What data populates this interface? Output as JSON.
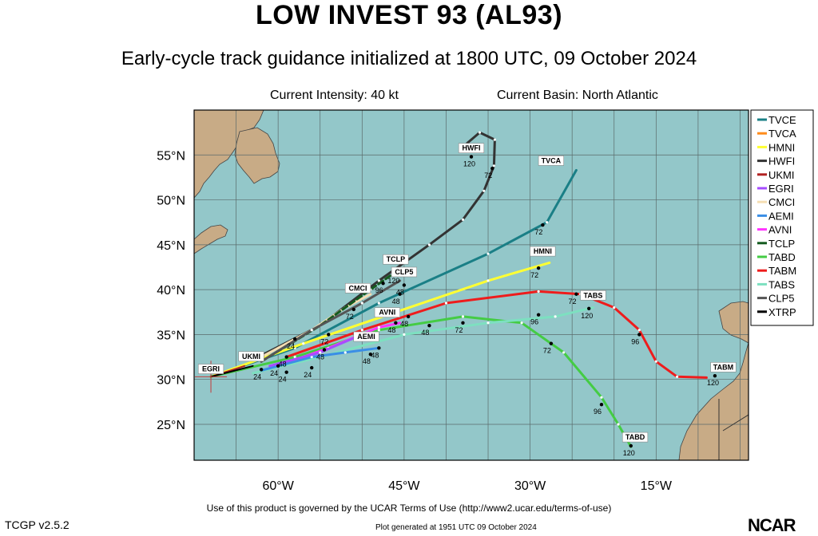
{
  "header": {
    "title": "LOW INVEST 93 (AL93)",
    "subtitle": "Early-cycle track guidance initialized at 1800 UTC, 09 October 2024",
    "intensity": "Current Intensity: 40 kt",
    "basin": "Current Basin: North Atlantic"
  },
  "footer": {
    "terms": "Use of this product is governed by the UCAR Terms of Use (http://www2.ucar.edu/terms-of-use)",
    "version": "TCGP v2.5.2",
    "generated": "Plot generated at 1951 UTC   09 October 2024",
    "logo": "NCAR"
  },
  "map": {
    "lon_range": [
      -70,
      -4
    ],
    "lat_range": [
      21,
      60
    ],
    "lon_ticks": [
      {
        "value": -60,
        "label": "60°W"
      },
      {
        "value": -45,
        "label": "45°W"
      },
      {
        "value": -30,
        "label": "30°W"
      },
      {
        "value": -15,
        "label": "15°W"
      }
    ],
    "lat_ticks": [
      {
        "value": 25,
        "label": "25°N"
      },
      {
        "value": 30,
        "label": "30°N"
      },
      {
        "value": 35,
        "label": "35°N"
      },
      {
        "value": 40,
        "label": "40°N"
      },
      {
        "value": 45,
        "label": "45°N"
      },
      {
        "value": 50,
        "label": "50°N"
      },
      {
        "value": 55,
        "label": "55°N"
      }
    ],
    "ocean_color": "#93c7c9",
    "land_color": "#c8ab86",
    "origin": {
      "lon": -68,
      "lat": 30.3
    }
  },
  "legend": [
    {
      "name": "TVCE",
      "color": "#1a7f86"
    },
    {
      "name": "TVCA",
      "color": "#ff8c1a"
    },
    {
      "name": "HMNI",
      "color": "#ffff33"
    },
    {
      "name": "HWFI",
      "color": "#333333"
    },
    {
      "name": "UKMI",
      "color": "#b22222"
    },
    {
      "name": "EGRI",
      "color": "#a64dff"
    },
    {
      "name": "CMCI",
      "color": "#f5deb3"
    },
    {
      "name": "AEMI",
      "color": "#3a8ee6"
    },
    {
      "name": "AVNI",
      "color": "#ff33ff"
    },
    {
      "name": "TCLP",
      "color": "#145a1e"
    },
    {
      "name": "TABD",
      "color": "#44cc44"
    },
    {
      "name": "TABM",
      "color": "#ee1c1c"
    },
    {
      "name": "TABS",
      "color": "#7de0c0"
    },
    {
      "name": "CLP5",
      "color": "#555555"
    },
    {
      "name": "XTRP",
      "color": "#000000"
    }
  ],
  "tracks": [
    {
      "name": "TVCE",
      "color": "#1a7f86",
      "width": 3,
      "points": [
        [
          -68,
          30.3
        ],
        [
          -58,
          33.5
        ],
        [
          -48,
          38.5
        ],
        [
          -35,
          44
        ],
        [
          -28,
          47.5
        ],
        [
          -24.5,
          53.3
        ]
      ],
      "label": "TVCA",
      "label_at": [
        -27.5,
        54.1
      ]
    },
    {
      "name": "HMNI",
      "color": "#ffff33",
      "width": 3,
      "points": [
        [
          -68,
          30.3
        ],
        [
          -57,
          34
        ],
        [
          -46,
          37.5
        ],
        [
          -35,
          41
        ],
        [
          -27.7,
          43
        ]
      ],
      "label": "HMNI",
      "label_at": [
        -28.5,
        44
      ]
    },
    {
      "name": "HWFI",
      "color": "#333333",
      "width": 3,
      "points": [
        [
          -63,
          32.2
        ],
        [
          -55,
          36
        ],
        [
          -48,
          41
        ],
        [
          -42,
          45
        ],
        [
          -38,
          47.8
        ],
        [
          -35.5,
          51
        ],
        [
          -34.3,
          53.8
        ],
        [
          -34.2,
          56.7
        ],
        [
          -36,
          57.5
        ],
        [
          -37.5,
          56.3
        ]
      ],
      "label": "HWFI",
      "label_at": [
        -37,
        55.5
      ]
    },
    {
      "name": "TABM",
      "color": "#ee1c1c",
      "width": 3,
      "points": [
        [
          -59,
          32.5
        ],
        [
          -50,
          35.5
        ],
        [
          -40,
          38.5
        ],
        [
          -29,
          39.8
        ],
        [
          -24,
          39.5
        ],
        [
          -20,
          38
        ],
        [
          -17,
          35.5
        ],
        [
          -15,
          32
        ],
        [
          -12.5,
          30.3
        ],
        [
          -9,
          30.2
        ]
      ],
      "label": "TABM",
      "label_at": [
        -7,
        31.1
      ]
    },
    {
      "name": "TABD",
      "color": "#44cc44",
      "width": 3,
      "points": [
        [
          -68,
          30.3
        ],
        [
          -58,
          32.5
        ],
        [
          -48,
          35.5
        ],
        [
          -38,
          37
        ],
        [
          -31,
          36.3
        ],
        [
          -26,
          33
        ],
        [
          -21.5,
          28
        ],
        [
          -19.5,
          25
        ],
        [
          -18,
          22.5
        ]
      ],
      "label": "TABD",
      "label_at": [
        -17.5,
        23.3
      ]
    },
    {
      "name": "TABS",
      "color": "#7de0c0",
      "width": 3,
      "points": [
        [
          -63,
          30.7
        ],
        [
          -55,
          32.5
        ],
        [
          -45,
          35
        ],
        [
          -35,
          36.3
        ],
        [
          -27,
          37
        ],
        [
          -22.5,
          38
        ]
      ],
      "label": "TABS",
      "label_at": [
        -22.5,
        39.1
      ]
    },
    {
      "name": "CMCI",
      "color": "#f5deb3",
      "width": 3,
      "points": [
        [
          -62,
          32.5
        ],
        [
          -56,
          35.5
        ],
        [
          -52,
          38
        ],
        [
          -49,
          39.5
        ]
      ],
      "label": "CMCI",
      "label_at": [
        -50.5,
        39.9
      ]
    },
    {
      "name": "TCLP",
      "color": "#145a1e",
      "width": 3,
      "dash": "7,4",
      "points": [
        [
          -62,
          32
        ],
        [
          -55,
          36
        ],
        [
          -49,
          40
        ],
        [
          -45.5,
          42.3
        ]
      ],
      "label": "TCLP",
      "label_at": [
        -46,
        43.1
      ]
    },
    {
      "name": "CLP5",
      "color": "#555555",
      "width": 3,
      "points": [
        [
          -62,
          32
        ],
        [
          -56,
          35.5
        ],
        [
          -50,
          38.5
        ],
        [
          -45.5,
          41
        ]
      ],
      "label": "CLP5",
      "label_at": [
        -45,
        41.7
      ]
    },
    {
      "name": "AVNI",
      "color": "#ff33ff",
      "width": 3,
      "points": [
        [
          -60,
          31.5
        ],
        [
          -54,
          33.5
        ],
        [
          -48,
          35.8
        ],
        [
          -45.5,
          36.3
        ]
      ],
      "label": "AVNI",
      "label_at": [
        -47,
        37.2
      ]
    },
    {
      "name": "AEMI",
      "color": "#3a8ee6",
      "width": 3,
      "points": [
        [
          -62,
          31
        ],
        [
          -56,
          32.5
        ],
        [
          -52,
          33
        ],
        [
          -48,
          33.5
        ]
      ],
      "label": "AEMI",
      "label_at": [
        -49.5,
        34.5
      ]
    },
    {
      "name": "EGRI",
      "color": "#a64dff",
      "width": 3,
      "points": [
        [
          -61,
          31.5
        ],
        [
          -55,
          33
        ],
        [
          -50,
          35
        ]
      ],
      "label": "",
      "label_at": [
        0,
        0
      ]
    },
    {
      "name": "UKMI",
      "color": "#b22222",
      "width": 2,
      "points": [
        [
          -68,
          30.3
        ],
        [
          -64,
          31.5
        ]
      ],
      "label": "UKMI",
      "label_at": [
        -63.2,
        32.3
      ]
    },
    {
      "name": "XTRP",
      "color": "#000000",
      "width": 2,
      "points": [
        [
          -68,
          30.3
        ],
        [
          -63,
          31.5
        ]
      ],
      "label": "EGRI",
      "label_at": [
        -68,
        30.9
      ]
    }
  ],
  "markers": [
    {
      "lon": -60,
      "lat": 31.5,
      "text": "24"
    },
    {
      "lon": -62,
      "lat": 31.1,
      "text": "24"
    },
    {
      "lon": -59,
      "lat": 30.8,
      "text": "24"
    },
    {
      "lon": -56,
      "lat": 31.3,
      "text": "24"
    },
    {
      "lon": -58,
      "lat": 34.5,
      "text": "24"
    },
    {
      "lon": -59,
      "lat": 32.5,
      "text": "48"
    },
    {
      "lon": -54.5,
      "lat": 33.3,
      "text": "48"
    },
    {
      "lon": -48,
      "lat": 33.5,
      "text": "48"
    },
    {
      "lon": -49,
      "lat": 32.8,
      "text": "48"
    },
    {
      "lon": -46,
      "lat": 36.3,
      "text": "48"
    },
    {
      "lon": -44.5,
      "lat": 37,
      "text": "48"
    },
    {
      "lon": -42,
      "lat": 36,
      "text": "48"
    },
    {
      "lon": -45.5,
      "lat": 39.5,
      "text": "48"
    },
    {
      "lon": -45,
      "lat": 40.5,
      "text": "48"
    },
    {
      "lon": -54,
      "lat": 35,
      "text": "72"
    },
    {
      "lon": -51,
      "lat": 37.8,
      "text": "72"
    },
    {
      "lon": -38,
      "lat": 36.3,
      "text": "72"
    },
    {
      "lon": -29,
      "lat": 42.4,
      "text": "72"
    },
    {
      "lon": -28.5,
      "lat": 47.2,
      "text": "72"
    },
    {
      "lon": -34.5,
      "lat": 53.5,
      "text": "72"
    },
    {
      "lon": -27.5,
      "lat": 34,
      "text": "72"
    },
    {
      "lon": -24.5,
      "lat": 39.5,
      "text": "72"
    },
    {
      "lon": -47.5,
      "lat": 40.7,
      "text": "96"
    },
    {
      "lon": -29,
      "lat": 37.2,
      "text": "96"
    },
    {
      "lon": -21.5,
      "lat": 27.2,
      "text": "96"
    },
    {
      "lon": -17,
      "lat": 35,
      "text": "96"
    },
    {
      "lon": -46,
      "lat": 41.8,
      "text": "120"
    },
    {
      "lon": -23,
      "lat": 37.9,
      "text": "120"
    },
    {
      "lon": -37,
      "lat": 54.8,
      "text": "120"
    },
    {
      "lon": -18,
      "lat": 22.6,
      "text": "120"
    },
    {
      "lon": -8,
      "lat": 30.4,
      "text": "120"
    }
  ]
}
